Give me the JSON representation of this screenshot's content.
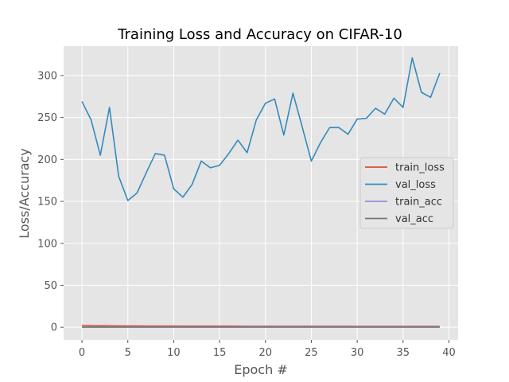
{
  "chart_data": {
    "type": "line",
    "title": "Training Loss and Accuracy on CIFAR-10",
    "xlabel": "Epoch #",
    "ylabel": "Loss/Accuracy",
    "xlim": [
      -2,
      41
    ],
    "ylim": [
      -15,
      335
    ],
    "xticks": [
      0,
      5,
      10,
      15,
      20,
      25,
      30,
      35,
      40
    ],
    "yticks": [
      0,
      50,
      100,
      150,
      200,
      250,
      300
    ],
    "grid": true,
    "legend_position": "center-right",
    "background": "#e5e5e5",
    "x": [
      0,
      1,
      2,
      3,
      4,
      5,
      6,
      7,
      8,
      9,
      10,
      11,
      12,
      13,
      14,
      15,
      16,
      17,
      18,
      19,
      20,
      21,
      22,
      23,
      24,
      25,
      26,
      27,
      28,
      29,
      30,
      31,
      32,
      33,
      34,
      35,
      36,
      37,
      38,
      39
    ],
    "series": [
      {
        "name": "train_loss",
        "color": "#e24a33",
        "values": [
          2.3,
          1.9,
          1.8,
          1.7,
          1.6,
          1.55,
          1.5,
          1.45,
          1.42,
          1.4,
          1.38,
          1.36,
          1.34,
          1.32,
          1.3,
          1.28,
          1.27,
          1.26,
          1.25,
          1.24,
          1.23,
          1.22,
          1.21,
          1.2,
          1.19,
          1.18,
          1.17,
          1.16,
          1.15,
          1.14,
          1.13,
          1.12,
          1.11,
          1.1,
          1.09,
          1.08,
          1.07,
          1.06,
          1.05,
          1.04
        ]
      },
      {
        "name": "val_loss",
        "color": "#348abd",
        "values": [
          269,
          247,
          205,
          262,
          180,
          151,
          160,
          184,
          207,
          205,
          165,
          155,
          170,
          198,
          190,
          193,
          207,
          223,
          208,
          247,
          267,
          272,
          229,
          279,
          239,
          198,
          220,
          238,
          238,
          230,
          248,
          249,
          261,
          254,
          273,
          262,
          321,
          280,
          274,
          303
        ]
      },
      {
        "name": "train_acc",
        "color": "#988ed5",
        "values": [
          0.2,
          0.3,
          0.35,
          0.38,
          0.4,
          0.42,
          0.44,
          0.46,
          0.47,
          0.48,
          0.49,
          0.5,
          0.51,
          0.52,
          0.53,
          0.53,
          0.54,
          0.55,
          0.55,
          0.56,
          0.56,
          0.57,
          0.57,
          0.58,
          0.58,
          0.59,
          0.59,
          0.6,
          0.6,
          0.6,
          0.61,
          0.61,
          0.61,
          0.62,
          0.62,
          0.62,
          0.63,
          0.63,
          0.63,
          0.64
        ]
      },
      {
        "name": "val_acc",
        "color": "#777777",
        "values": [
          0.1,
          0.1,
          0.1,
          0.1,
          0.1,
          0.1,
          0.1,
          0.1,
          0.1,
          0.1,
          0.1,
          0.1,
          0.1,
          0.1,
          0.1,
          0.1,
          0.1,
          0.1,
          0.1,
          0.1,
          0.1,
          0.1,
          0.1,
          0.1,
          0.1,
          0.1,
          0.1,
          0.1,
          0.1,
          0.1,
          0.1,
          0.1,
          0.1,
          0.1,
          0.1,
          0.1,
          0.1,
          0.1,
          0.1,
          0.1
        ]
      }
    ]
  }
}
